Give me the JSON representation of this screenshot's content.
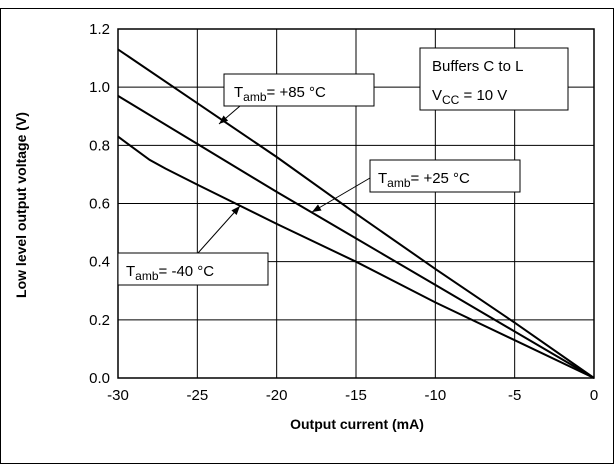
{
  "chart_data": {
    "type": "line",
    "title": "",
    "xlabel": "Output current (mA)",
    "ylabel": "Low level output voltage (V)",
    "xlim": [
      -30,
      0
    ],
    "ylim": [
      0,
      1.2
    ],
    "x_ticks": [
      -30,
      -25,
      -20,
      -15,
      -10,
      -5,
      0
    ],
    "x_tick_labels": [
      "-30",
      "-25",
      "-20",
      "-15",
      "-10",
      "-5",
      "0"
    ],
    "y_ticks": [
      0,
      0.2,
      0.4,
      0.6,
      0.8,
      1.0,
      1.2
    ],
    "y_tick_labels": [
      "0.0",
      "0.2",
      "0.4",
      "0.6",
      "0.8",
      "1.0",
      "1.2"
    ],
    "grid": true,
    "series": [
      {
        "name": "T_amb = +85 °C",
        "x": [
          -30,
          -25,
          -20,
          -15,
          -10,
          -5,
          0
        ],
        "y": [
          1.13,
          0.945,
          0.76,
          0.565,
          0.375,
          0.19,
          0.0
        ]
      },
      {
        "name": "T_amb = +25 °C",
        "x": [
          -30,
          -25,
          -20,
          -15,
          -10,
          -5,
          0
        ],
        "y": [
          0.97,
          0.805,
          0.64,
          0.48,
          0.32,
          0.16,
          0.0
        ]
      },
      {
        "name": "T_amb = -40 °C",
        "x": [
          -30,
          -28,
          -27,
          -25,
          -20,
          -15,
          -10,
          -5,
          0
        ],
        "y": [
          0.83,
          0.75,
          0.72,
          0.665,
          0.53,
          0.4,
          0.26,
          0.13,
          0.0
        ]
      }
    ],
    "annotations": [
      {
        "main": "T",
        "sub": "amb",
        "rest": "= +85 °C",
        "series": 0
      },
      {
        "main": "T",
        "sub": "amb",
        "rest": "= +25 °C",
        "series": 1
      },
      {
        "main": "T",
        "sub": "amb",
        "rest": "= -40 °C",
        "series": 2
      }
    ],
    "info_box": {
      "line1": "Buffers C to L",
      "line2_main": "V",
      "line2_sub": "CC",
      "line2_rest": " = 10 V"
    }
  }
}
